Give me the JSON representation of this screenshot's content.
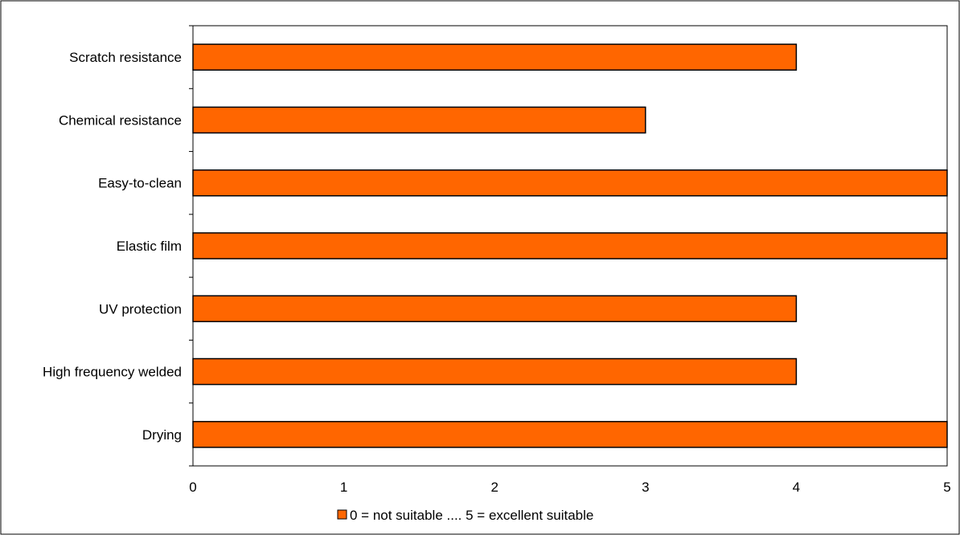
{
  "chart_data": {
    "type": "bar",
    "orientation": "horizontal",
    "categories": [
      "Scratch resistance",
      "Chemical resistance",
      "Easy-to-clean",
      "Elastic film",
      "UV protection",
      "High frequency welded",
      "Drying"
    ],
    "series": [
      {
        "name": "0 = not suitable .... 5 = excellent suitable",
        "values": [
          4,
          3,
          5,
          5,
          4,
          4,
          5
        ],
        "color": "#FF6600"
      }
    ],
    "xlim": [
      0,
      5
    ],
    "x_ticks": [
      "0",
      "1",
      "2",
      "3",
      "4",
      "5"
    ],
    "title": "",
    "xlabel": "",
    "ylabel": "",
    "grid": false,
    "legend_position": "bottom",
    "colors": {
      "bar_fill": "#FF6600",
      "bar_stroke": "#000000",
      "axis": "#000000",
      "border": "#000000",
      "background": "#FFFFFF"
    }
  }
}
